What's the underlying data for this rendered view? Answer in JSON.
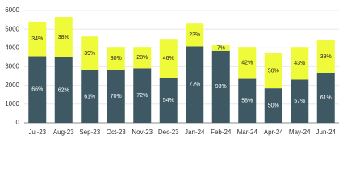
{
  "chart_data": {
    "type": "stacked-bar",
    "categories": [
      "Jul-23",
      "Aug-23",
      "Sep-23",
      "Oct-23",
      "Nov-23",
      "Dec-23",
      "Jan-24",
      "Feb-24",
      "Mar-24",
      "Apr-24",
      "May-24",
      "Jun-24"
    ],
    "series": [
      {
        "color": "#3e5964",
        "label_color": "#ffffff",
        "values": [
          3560,
          3500,
          2810,
          2840,
          2920,
          2420,
          4080,
          3850,
          2350,
          1850,
          2310,
          2680
        ],
        "value_labels": [
          "66%",
          "62%",
          "61%",
          "70%",
          "72%",
          "54%",
          "77%",
          "93%",
          "58%",
          "50%",
          "57%",
          "61%"
        ]
      },
      {
        "color": "#eefa3a",
        "label_color": "#222222",
        "values": [
          1840,
          2150,
          1800,
          1210,
          1130,
          2060,
          1220,
          290,
          1700,
          1860,
          1740,
          1720
        ],
        "value_labels": [
          "34%",
          "38%",
          "39%",
          "30%",
          "28%",
          "46%",
          "23%",
          "7%",
          "42%",
          "50%",
          "43%",
          "39%"
        ]
      }
    ],
    "ylim": [
      0,
      6000
    ],
    "yticks": [
      0,
      1000,
      2000,
      3000,
      4000,
      5000,
      6000
    ],
    "grid": true
  }
}
